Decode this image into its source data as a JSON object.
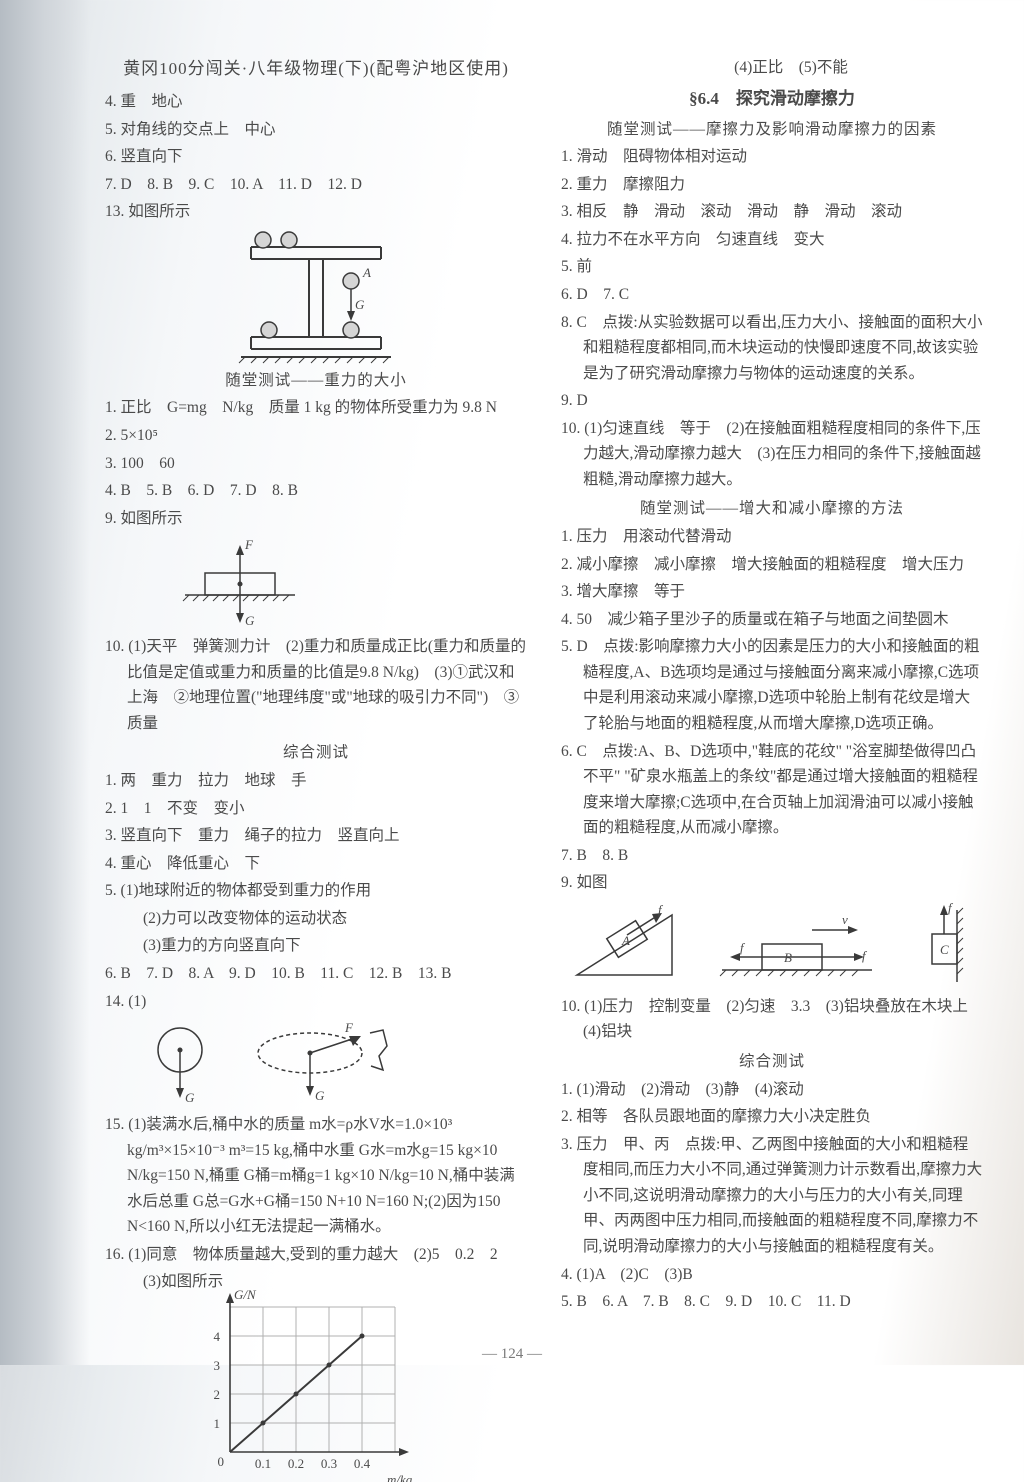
{
  "header": {
    "book_title": "黄冈100分闯关·八年级物理(下)(配粤沪地区使用)"
  },
  "left": {
    "l4": "4. 重　地心",
    "l5": "5. 对角线的交点上　中心",
    "l6": "6. 竖直向下",
    "l7": "7. D　8. B　9. C　10. A　11. D　12. D",
    "l13": "13. 如图所示",
    "section_gravity_title": "随堂测试——重力的大小",
    "g1": "1. 正比　G=mg　N/kg　质量 1 kg 的物体所受重力为 9.8 N",
    "g2": "2. 5×10⁵",
    "g3": "3. 100　60",
    "g4": "4. B　5. B　6. D　7. D　8. B",
    "g9": "9. 如图所示",
    "g10": "10. (1)天平　弹簧测力计　(2)重力和质量成正比(重力和质量的比值是定值或重力和质量的比值是9.8 N/kg)　(3)①武汉和上海　②地理位置(\"地理纬度\"或\"地球的吸引力不同\")　③质量",
    "comp_title": "综合测试",
    "c1": "1. 两　重力　拉力　地球　手",
    "c2": "2. 1　1　不变　变小",
    "c3": "3. 竖直向下　重力　绳子的拉力　竖直向上",
    "c4": "4. 重心　降低重心　下",
    "c5": "5. (1)地球附近的物体都受到重力的作用",
    "c5b": "(2)力可以改变物体的运动状态",
    "c5c": "(3)重力的方向竖直向下",
    "c6": "6. B　7. D　8. A　9. D　10. B　11. C　12. B　13. B",
    "c14": "14. (1)",
    "c15": "15. (1)装满水后,桶中水的质量 m水=ρ水V水=1.0×10³ kg/m³×15×10⁻³ m³=15 kg,桶中水重 G水=m水g=15 kg×10 N/kg=150 N,桶重 G桶=m桶g=1 kg×10 N/kg=10 N,桶中装满水后总重 G总=G水+G桶=150 N+10 N=160 N;(2)因为150 N<160 N,所以小红无法提起一满桶水。",
    "c16a": "16. (1)同意　物体质量越大,受到的重力越大　(2)5　0.2　2",
    "c16c": "(3)如图所示",
    "chart": {
      "type": "line",
      "xlabel": "m/kg",
      "ylabel": "G/N",
      "x_ticks": [
        "0.1",
        "0.2",
        "0.3",
        "0.4"
      ],
      "y_ticks": [
        "1",
        "2",
        "3",
        "4"
      ],
      "points_x": [
        0,
        0.1,
        0.2,
        0.3,
        0.4
      ],
      "points_y": [
        0,
        1,
        2,
        3,
        4
      ],
      "xlim": [
        0,
        0.5
      ],
      "ylim": [
        0,
        5
      ],
      "grid_color": "#b0b0b0",
      "line_color": "#3a3a3a",
      "axis_color": "#3a3a3a",
      "label_fontsize": 13
    }
  },
  "right": {
    "r_top": "(4)正比　(5)不能",
    "sec64_title": "§6.4　探究滑动摩擦力",
    "sub1_title": "随堂测试——摩擦力及影响滑动摩擦力的因素",
    "f1": "1. 滑动　阻碍物体相对运动",
    "f2": "2. 重力　摩擦阻力",
    "f3": "3. 相反　静　滑动　滚动　滑动　静　滑动　滚动",
    "f4": "4. 拉力不在水平方向　匀速直线　变大",
    "f5": "5. 前",
    "f6": "6. D　7. C",
    "f8": "8. C　点拨:从实验数据可以看出,压力大小、接触面的面积大小和粗糙程度都相同,而木块运动的快慢即速度不同,故该实验是为了研究滑动摩擦力与物体的运动速度的关系。",
    "f9": "9. D",
    "f10": "10. (1)匀速直线　等于　(2)在接触面粗糙程度相同的条件下,压力越大,滑动摩擦力越大　(3)在压力相同的条件下,接触面越粗糙,滑动摩擦力越大。",
    "sub2_title": "随堂测试——增大和减小摩擦的方法",
    "m1": "1. 压力　用滚动代替滑动",
    "m2": "2. 减小摩擦　减小摩擦　增大接触面的粗糙程度　增大压力",
    "m3": "3. 增大摩擦　等于",
    "m4": "4. 50　减少箱子里沙子的质量或在箱子与地面之间垫圆木",
    "m5": "5. D　点拨:影响摩擦力大小的因素是压力的大小和接触面的粗糙程度,A、B选项均是通过与接触面分离来减小摩擦,C选项中是利用滚动来减小摩擦,D选项中轮胎上制有花纹是增大了轮胎与地面的粗糙程度,从而增大摩擦,D选项正确。",
    "m6": "6. C　点拨:A、B、D选项中,\"鞋底的花纹\" \"浴室脚垫做得凹凸不平\" \"矿泉水瓶盖上的条纹\"都是通过增大接触面的粗糙程度来增大摩擦;C选项中,在合页轴上加润滑油可以减小接触面的粗糙程度,从而减小摩擦。",
    "m7": "7. B　8. B",
    "m9": "9. 如图",
    "m10": "10. (1)压力　控制变量　(2)匀速　3.3　(3)铝块叠放在木块上　(4)铝块",
    "comp2_title": "综合测试",
    "cc1": "1. (1)滑动　(2)滑动　(3)静　(4)滚动",
    "cc2": "2. 相等　各队员跟地面的摩擦力大小决定胜负",
    "cc3": "3. 压力　甲、丙　点拨:甲、乙两图中接触面的大小和粗糙程度相同,而压力大小不同,通过弹簧测力计示数看出,摩擦力大小不同,这说明滑动摩擦力的大小与压力的大小有关,同理甲、丙两图中压力相同,而接触面的粗糙程度不同,摩擦力不同,说明滑动摩擦力的大小与接触面的粗糙程度有关。",
    "cc4": "4. (1)A　(2)C　(3)B",
    "cc5": "5. B　6. A　7. B　8. C　9. D　10. C　11. D"
  },
  "pagenum": "— 124 —",
  "colors": {
    "text": "#4a4a4a",
    "axis": "#3a3a3a",
    "grid": "#b0b0b0"
  }
}
